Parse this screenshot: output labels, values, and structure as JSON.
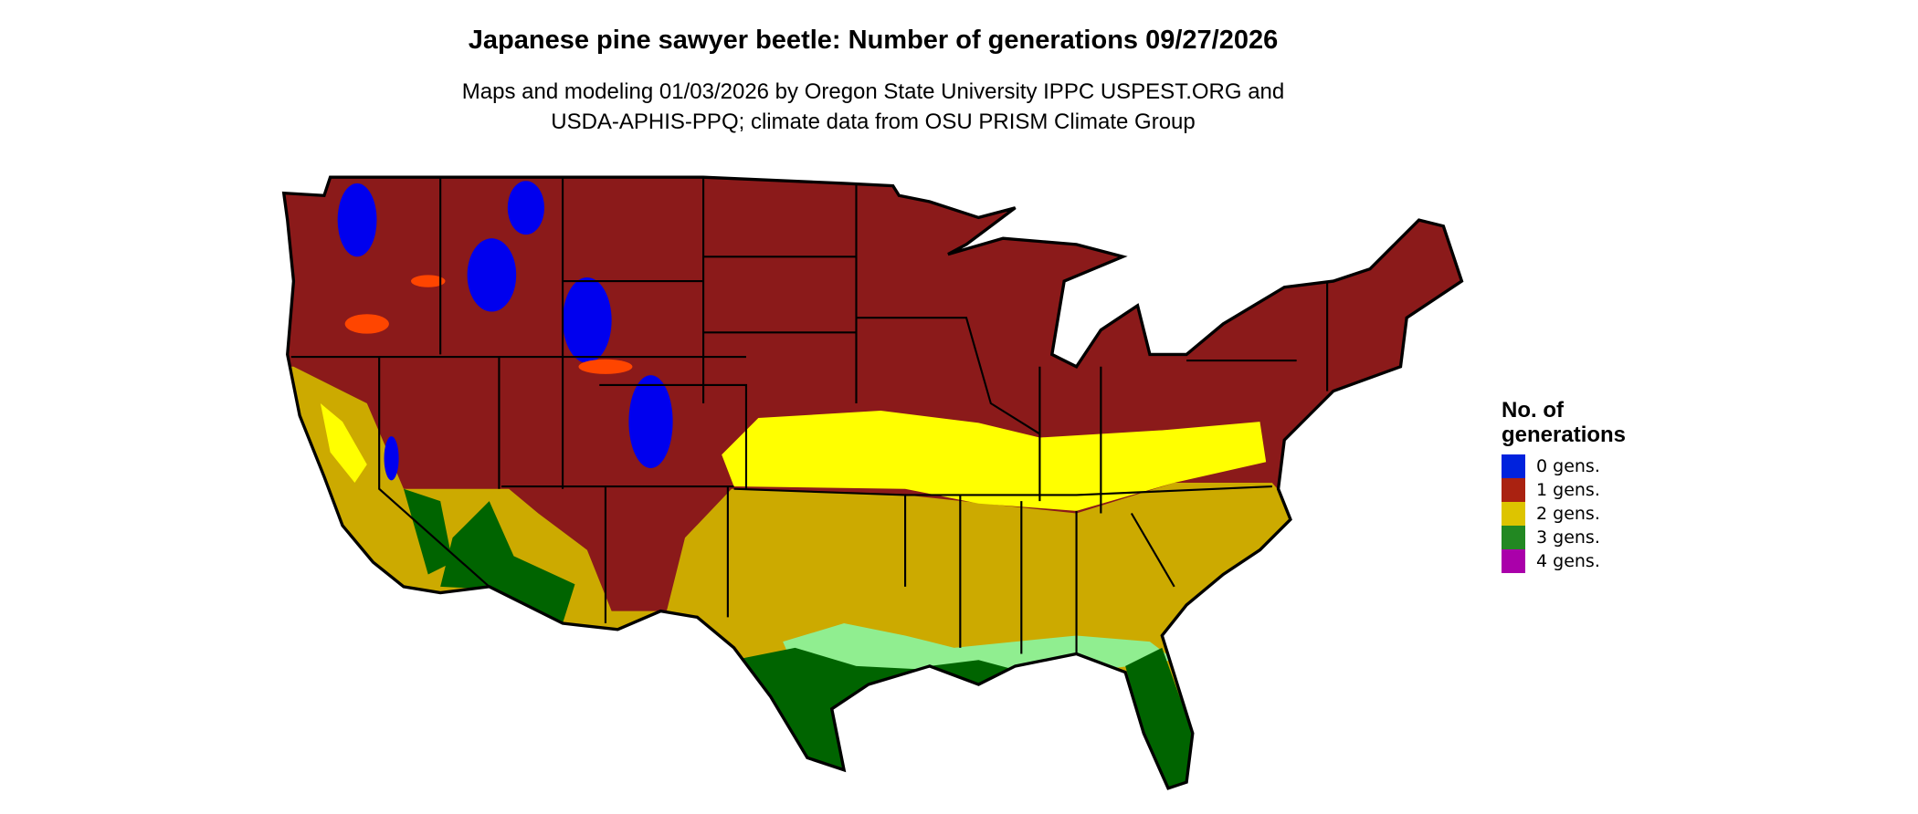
{
  "title": "Japanese pine sawyer beetle: Number of generations 09/27/2026",
  "subtitle": {
    "line1": "Maps and modeling 01/03/2026 by Oregon State University IPPC USPEST.ORG and",
    "line2": "USDA-APHIS-PPQ; climate data from OSU PRISM Climate Group"
  },
  "legend": {
    "title_line1": "No. of",
    "title_line2": "generations",
    "items": [
      {
        "label": "0 gens.",
        "color": "#0022dd"
      },
      {
        "label": "1 gens.",
        "color": "#aa2211"
      },
      {
        "label": "2 gens.",
        "color": "#ddc400"
      },
      {
        "label": "3 gens.",
        "color": "#228822"
      },
      {
        "label": "4 gens.",
        "color": "#aa00aa"
      }
    ]
  },
  "map_colors": {
    "one_gen_dark": "#8b1a1a",
    "two_gen_gold": "#ccaa00",
    "transition_yellow": "#ffff00",
    "three_gen_dark_green": "#006400",
    "transition_light_green": "#90ee90",
    "transition_orange": "#ff4500",
    "zero_gen_blue": "#0000ee",
    "four_gen_magenta": "#cc00cc"
  }
}
